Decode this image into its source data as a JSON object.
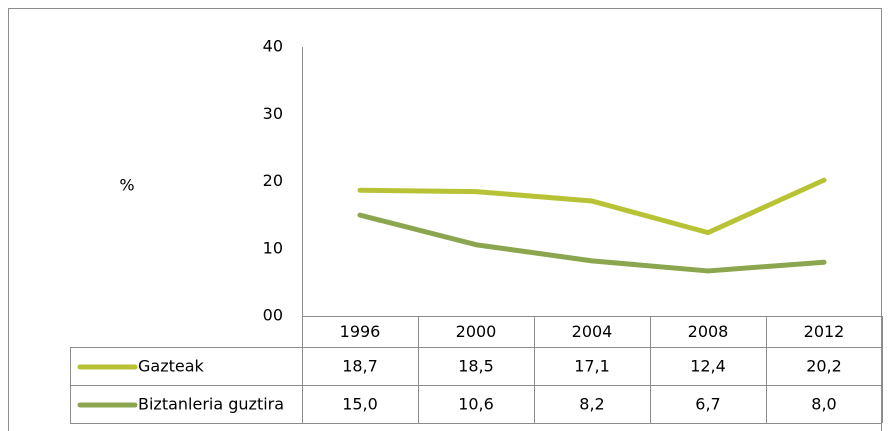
{
  "chart_data": {
    "type": "line",
    "y_label": "%",
    "categories": [
      "1996",
      "2000",
      "2004",
      "2008",
      "2012"
    ],
    "series": [
      {
        "name": "Gazteak",
        "color": "#b7c335",
        "values": [
          18.7,
          18.5,
          17.1,
          12.4,
          20.2
        ],
        "value_labels": [
          "18,7",
          "18,5",
          "17,1",
          "12,4",
          "20,2"
        ]
      },
      {
        "name": "Biztanleria guztira",
        "color": "#8ca54f",
        "values": [
          15.0,
          10.6,
          8.2,
          6.7,
          8.0
        ],
        "value_labels": [
          "15,0",
          "10,6",
          "8,2",
          "6,7",
          "8,0"
        ]
      }
    ],
    "ylim": [
      0,
      40
    ],
    "yticks": [
      {
        "value": 0,
        "label": "00"
      },
      10,
      20,
      30,
      40
    ],
    "grid": false
  }
}
